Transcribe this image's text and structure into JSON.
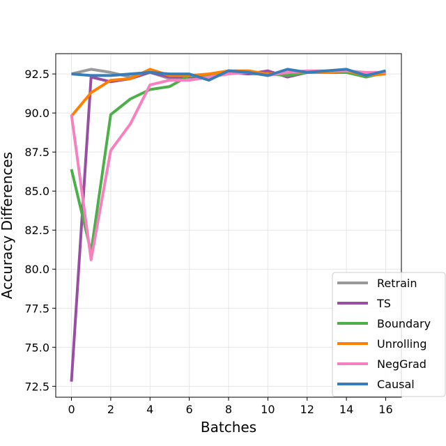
{
  "chart_data": {
    "type": "line",
    "xlabel": "Batches",
    "ylabel": "Accuracy Differences",
    "xlim": [
      -0.8,
      16.8
    ],
    "ylim": [
      71.8,
      93.8
    ],
    "xticks": [
      0,
      2,
      4,
      6,
      8,
      10,
      12,
      14,
      16
    ],
    "yticks": [
      72.5,
      75.0,
      77.5,
      80.0,
      82.5,
      85.0,
      87.5,
      90.0,
      92.5
    ],
    "grid": true,
    "legend_position": "lower-right",
    "x": [
      0,
      1,
      2,
      3,
      4,
      5,
      6,
      7,
      8,
      9,
      10,
      11,
      12,
      13,
      14,
      15,
      16
    ],
    "series": [
      {
        "name": "Retrain",
        "color": "#999999",
        "values": [
          92.5,
          92.8,
          92.6,
          92.3,
          92.6,
          92.2,
          92.3,
          92.4,
          92.7,
          92.5,
          92.5,
          92.6,
          92.6,
          92.6,
          92.7,
          92.3,
          92.6
        ]
      },
      {
        "name": "TS",
        "color": "#984ea3",
        "values": [
          72.8,
          92.3,
          92.0,
          92.2,
          92.6,
          92.3,
          92.3,
          92.4,
          92.6,
          92.5,
          92.7,
          92.3,
          92.6,
          92.6,
          92.6,
          92.5,
          92.6
        ]
      },
      {
        "name": "Boundary",
        "color": "#4daf4a",
        "values": [
          86.4,
          81.1,
          89.9,
          90.9,
          91.5,
          91.7,
          92.4,
          92.3,
          92.7,
          92.6,
          92.5,
          92.4,
          92.6,
          92.6,
          92.6,
          92.3,
          92.6
        ]
      },
      {
        "name": "Unrolling",
        "color": "#ff7f00",
        "values": [
          89.8,
          91.3,
          92.1,
          92.2,
          92.8,
          92.4,
          92.4,
          92.5,
          92.7,
          92.7,
          92.5,
          92.6,
          92.6,
          92.6,
          92.7,
          92.4,
          92.5
        ]
      },
      {
        "name": "NegGrad",
        "color": "#f781bf",
        "values": [
          89.9,
          80.6,
          87.6,
          89.3,
          91.8,
          92.1,
          92.1,
          92.3,
          92.5,
          92.6,
          92.4,
          92.6,
          92.7,
          92.7,
          92.7,
          92.6,
          92.6
        ]
      },
      {
        "name": "Causal",
        "color": "#377eb8",
        "values": [
          92.5,
          92.4,
          92.4,
          92.5,
          92.6,
          92.5,
          92.5,
          92.1,
          92.7,
          92.6,
          92.4,
          92.8,
          92.6,
          92.7,
          92.8,
          92.4,
          92.7
        ]
      }
    ]
  }
}
